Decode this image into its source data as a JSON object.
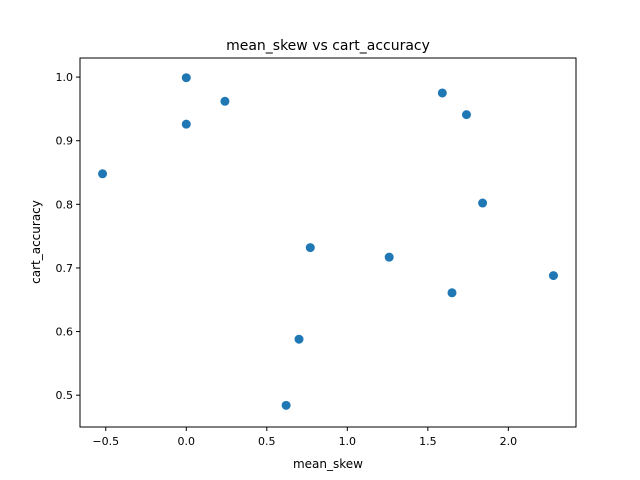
{
  "chart_data": {
    "type": "scatter",
    "title": "mean_skew vs cart_accuracy",
    "xlabel": "mean_skew",
    "ylabel": "cart_accuracy",
    "xlim": [
      -0.66,
      2.42
    ],
    "ylim": [
      0.45,
      1.03
    ],
    "xticks": [
      -0.5,
      0.0,
      0.5,
      1.0,
      1.5,
      2.0
    ],
    "xtick_labels": [
      "−0.5",
      "0.0",
      "0.5",
      "1.0",
      "1.5",
      "2.0"
    ],
    "yticks": [
      0.5,
      0.6,
      0.7,
      0.8,
      0.9,
      1.0
    ],
    "ytick_labels": [
      "0.5",
      "0.6",
      "0.7",
      "0.8",
      "0.9",
      "1.0"
    ],
    "grid": false,
    "marker_color": "#1f77b4",
    "points": [
      {
        "x": -0.52,
        "y": 0.848
      },
      {
        "x": 0.0,
        "y": 0.999
      },
      {
        "x": 0.0,
        "y": 0.926
      },
      {
        "x": 0.24,
        "y": 0.962
      },
      {
        "x": 0.62,
        "y": 0.484
      },
      {
        "x": 0.7,
        "y": 0.588
      },
      {
        "x": 0.77,
        "y": 0.732
      },
      {
        "x": 1.26,
        "y": 0.717
      },
      {
        "x": 1.59,
        "y": 0.975
      },
      {
        "x": 1.65,
        "y": 0.661
      },
      {
        "x": 1.74,
        "y": 0.941
      },
      {
        "x": 1.84,
        "y": 0.802
      },
      {
        "x": 2.28,
        "y": 0.688
      }
    ]
  }
}
